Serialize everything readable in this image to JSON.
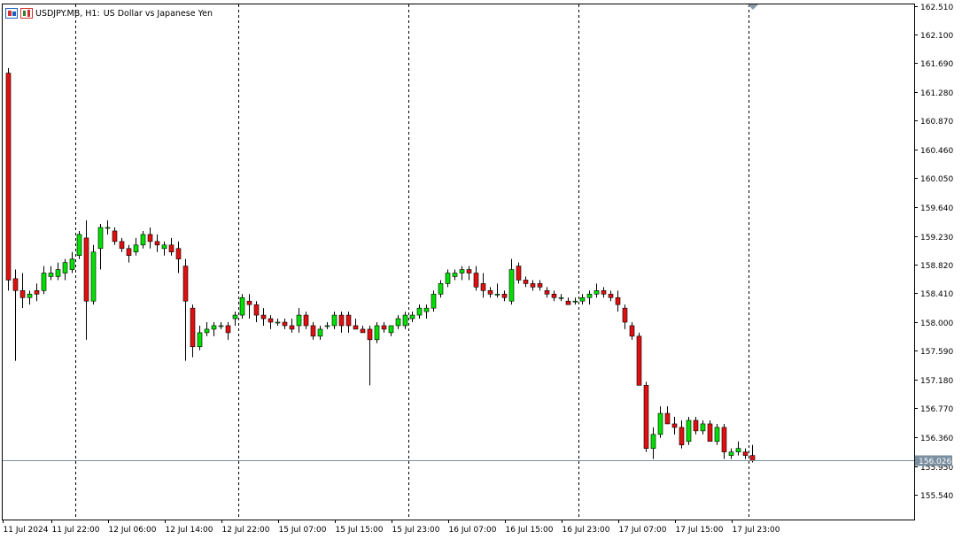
{
  "header": {
    "symbol": "USDJPY.MB",
    "timeframe": "H1",
    "description": "US Dollar vs Japanese Yen",
    "icons": [
      "bars-icon",
      "calendar-icon"
    ]
  },
  "colors": {
    "bull": "#00e000",
    "bear": "#e01010",
    "wick": "#000000",
    "separator": "#000000",
    "price_line": "#7a8fa0",
    "price_label_bg": "#7a8fa0",
    "price_label_text": "#ffffff"
  },
  "chart_data": {
    "type": "candlestick",
    "title": "",
    "ylim": [
      155.26,
      162.54
    ],
    "y_ticks": [
      "162.510",
      "162.100",
      "161.690",
      "161.280",
      "160.870",
      "160.460",
      "160.050",
      "159.640",
      "159.230",
      "158.820",
      "158.410",
      "158.000",
      "157.590",
      "157.180",
      "156.770",
      "156.360",
      "155.950",
      "155.540"
    ],
    "x_labels": [
      "11 Jul 2024",
      "11 Jul 22:00",
      "12 Jul 06:00",
      "12 Jul 14:00",
      "12 Jul 22:00",
      "15 Jul 07:00",
      "15 Jul 15:00",
      "15 Jul 23:00",
      "16 Jul 07:00",
      "16 Jul 15:00",
      "16 Jul 23:00",
      "17 Jul 07:00",
      "17 Jul 15:00",
      "17 Jul 23:00"
    ],
    "x_label_bars": [
      0,
      8,
      16,
      24,
      32,
      40,
      48,
      56,
      64,
      72,
      80,
      88,
      96,
      104
    ],
    "separator_bars": [
      9.5,
      32.5,
      56.5,
      80.5,
      104.5
    ],
    "current_price": "156.026",
    "candles": [
      [
        161.55,
        161.62,
        158.45,
        158.6
      ],
      [
        158.62,
        158.75,
        157.45,
        158.45
      ],
      [
        158.45,
        158.7,
        158.2,
        158.35
      ],
      [
        158.35,
        158.45,
        158.25,
        158.4
      ],
      [
        158.45,
        158.55,
        158.3,
        158.4
      ],
      [
        158.45,
        158.8,
        158.4,
        158.7
      ],
      [
        158.65,
        158.8,
        158.6,
        158.7
      ],
      [
        158.65,
        158.85,
        158.6,
        158.75
      ],
      [
        158.7,
        158.9,
        158.6,
        158.85
      ],
      [
        158.75,
        159.0,
        158.7,
        158.9
      ],
      [
        158.95,
        159.3,
        158.9,
        159.25
      ],
      [
        159.2,
        159.45,
        157.75,
        158.3
      ],
      [
        158.3,
        159.1,
        158.25,
        159.0
      ],
      [
        159.05,
        159.4,
        158.75,
        159.35
      ],
      [
        159.35,
        159.45,
        159.25,
        159.35
      ],
      [
        159.3,
        159.35,
        159.1,
        159.15
      ],
      [
        159.15,
        159.2,
        159.0,
        159.05
      ],
      [
        159.05,
        159.1,
        158.85,
        158.95
      ],
      [
        159.0,
        159.2,
        158.95,
        159.1
      ],
      [
        159.1,
        159.3,
        159.05,
        159.25
      ],
      [
        159.25,
        159.35,
        159.05,
        159.15
      ],
      [
        159.15,
        159.25,
        159.0,
        159.1
      ],
      [
        159.05,
        159.15,
        158.95,
        159.1
      ],
      [
        159.1,
        159.2,
        158.95,
        159.0
      ],
      [
        159.05,
        159.15,
        158.7,
        158.9
      ],
      [
        158.8,
        158.9,
        157.45,
        158.3
      ],
      [
        158.2,
        158.25,
        157.5,
        157.65
      ],
      [
        157.65,
        157.95,
        157.6,
        157.85
      ],
      [
        157.85,
        158.0,
        157.8,
        157.9
      ],
      [
        157.9,
        158.0,
        157.8,
        157.95
      ],
      [
        157.95,
        158.0,
        157.9,
        157.95
      ],
      [
        157.95,
        158.0,
        157.75,
        157.85
      ],
      [
        158.05,
        158.15,
        157.95,
        158.1
      ],
      [
        158.1,
        158.4,
        158.05,
        158.35
      ],
      [
        158.3,
        158.4,
        158.05,
        158.25
      ],
      [
        158.25,
        158.3,
        158.0,
        158.1
      ],
      [
        158.1,
        158.2,
        157.95,
        158.05
      ],
      [
        158.05,
        158.1,
        157.9,
        158.0
      ],
      [
        158.0,
        158.05,
        157.95,
        158.0
      ],
      [
        158.0,
        158.05,
        157.9,
        157.95
      ],
      [
        157.95,
        158.05,
        157.85,
        157.9
      ],
      [
        157.95,
        158.2,
        157.85,
        158.1
      ],
      [
        158.1,
        158.15,
        157.9,
        157.95
      ],
      [
        157.95,
        158.0,
        157.75,
        157.8
      ],
      [
        157.8,
        157.95,
        157.75,
        157.9
      ],
      [
        157.95,
        158.0,
        157.9,
        157.95
      ],
      [
        157.95,
        158.15,
        157.9,
        158.1
      ],
      [
        158.1,
        158.15,
        157.85,
        157.95
      ],
      [
        158.1,
        158.15,
        157.85,
        157.95
      ],
      [
        157.95,
        158.05,
        157.9,
        157.9
      ],
      [
        157.9,
        157.95,
        157.85,
        157.85
      ],
      [
        157.9,
        157.95,
        157.1,
        157.75
      ],
      [
        157.75,
        158.0,
        157.7,
        157.95
      ],
      [
        157.95,
        158.0,
        157.85,
        157.9
      ],
      [
        157.85,
        157.95,
        157.8,
        157.95
      ],
      [
        157.95,
        158.1,
        157.9,
        158.05
      ],
      [
        157.95,
        158.15,
        157.9,
        158.1
      ],
      [
        158.05,
        158.15,
        158.0,
        158.1
      ],
      [
        158.1,
        158.25,
        158.05,
        158.2
      ],
      [
        158.15,
        158.25,
        158.05,
        158.2
      ],
      [
        158.2,
        158.45,
        158.15,
        158.4
      ],
      [
        158.4,
        158.6,
        158.35,
        158.55
      ],
      [
        158.55,
        158.75,
        158.5,
        158.7
      ],
      [
        158.65,
        158.75,
        158.6,
        158.7
      ],
      [
        158.7,
        158.8,
        158.6,
        158.75
      ],
      [
        158.75,
        158.8,
        158.6,
        158.7
      ],
      [
        158.7,
        158.8,
        158.45,
        158.5
      ],
      [
        158.55,
        158.7,
        158.35,
        158.45
      ],
      [
        158.45,
        158.5,
        158.35,
        158.4
      ],
      [
        158.4,
        158.55,
        158.35,
        158.4
      ],
      [
        158.4,
        158.45,
        158.3,
        158.35
      ],
      [
        158.3,
        158.9,
        158.25,
        158.75
      ],
      [
        158.8,
        158.85,
        158.55,
        158.6
      ],
      [
        158.6,
        158.65,
        158.5,
        158.55
      ],
      [
        158.55,
        158.6,
        158.45,
        158.5
      ],
      [
        158.55,
        158.6,
        158.45,
        158.5
      ],
      [
        158.45,
        158.5,
        158.35,
        158.4
      ],
      [
        158.4,
        158.45,
        158.3,
        158.35
      ],
      [
        158.35,
        158.4,
        158.3,
        158.35
      ],
      [
        158.3,
        158.35,
        158.25,
        158.25
      ],
      [
        158.3,
        158.35,
        158.25,
        158.3
      ],
      [
        158.3,
        158.4,
        158.25,
        158.35
      ],
      [
        158.35,
        158.45,
        158.25,
        158.4
      ],
      [
        158.4,
        158.55,
        158.35,
        158.45
      ],
      [
        158.45,
        158.5,
        158.35,
        158.4
      ],
      [
        158.4,
        158.45,
        158.3,
        158.35
      ],
      [
        158.35,
        158.45,
        158.15,
        158.25
      ],
      [
        158.2,
        158.25,
        157.9,
        158.0
      ],
      [
        157.95,
        158.0,
        157.75,
        157.8
      ],
      [
        157.8,
        157.85,
        157.1,
        157.1
      ],
      [
        157.1,
        157.15,
        156.15,
        156.2
      ],
      [
        156.2,
        156.5,
        156.05,
        156.4
      ],
      [
        156.4,
        156.8,
        156.35,
        156.7
      ],
      [
        156.7,
        156.8,
        156.55,
        156.55
      ],
      [
        156.55,
        156.65,
        156.4,
        156.5
      ],
      [
        156.5,
        156.6,
        156.2,
        156.25
      ],
      [
        156.3,
        156.65,
        156.25,
        156.6
      ],
      [
        156.6,
        156.65,
        156.4,
        156.45
      ],
      [
        156.45,
        156.6,
        156.4,
        156.55
      ],
      [
        156.55,
        156.6,
        156.3,
        156.3
      ],
      [
        156.3,
        156.55,
        156.25,
        156.5
      ],
      [
        156.5,
        156.55,
        156.05,
        156.15
      ],
      [
        156.1,
        156.2,
        156.05,
        156.15
      ],
      [
        156.15,
        156.3,
        156.1,
        156.2
      ],
      [
        156.15,
        156.2,
        156.05,
        156.1
      ],
      [
        156.1,
        156.25,
        156.0,
        156.03
      ]
    ]
  }
}
